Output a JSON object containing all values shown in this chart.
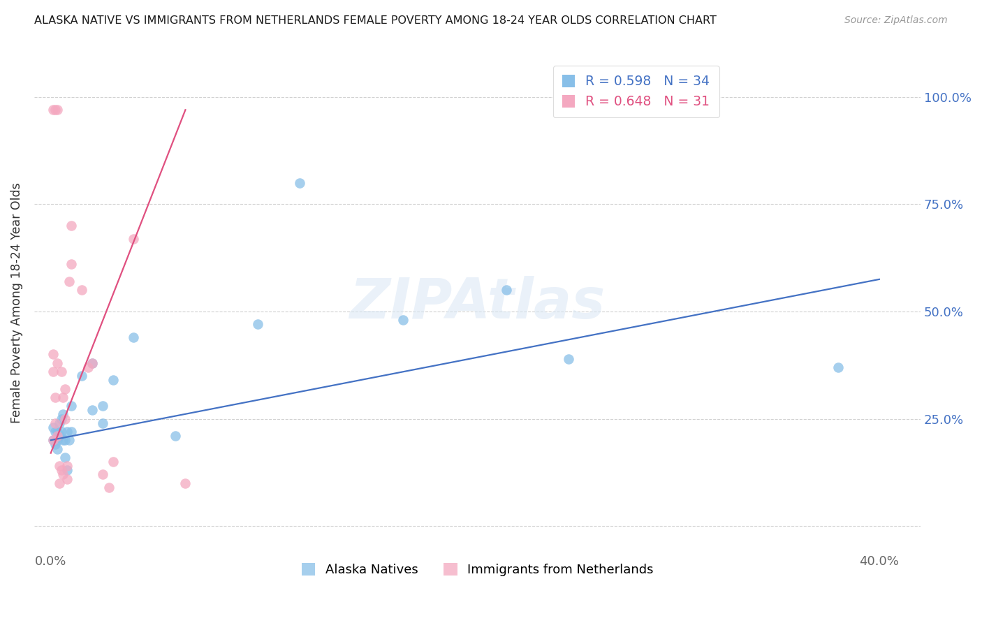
{
  "title": "ALASKA NATIVE VS IMMIGRANTS FROM NETHERLANDS FEMALE POVERTY AMONG 18-24 YEAR OLDS CORRELATION CHART",
  "source": "Source: ZipAtlas.com",
  "ylabel": "Female Poverty Among 18-24 Year Olds",
  "ytick_vals": [
    0.0,
    0.25,
    0.5,
    0.75,
    1.0
  ],
  "ytick_labels": [
    "",
    "25.0%",
    "50.0%",
    "75.0%",
    "100.0%"
  ],
  "xtick_vals": [
    0.0,
    0.1,
    0.2,
    0.3,
    0.4
  ],
  "xtick_labels": [
    "0.0%",
    "",
    "",
    "",
    "40.0%"
  ],
  "xlim": [
    -0.008,
    0.42
  ],
  "ylim": [
    -0.06,
    1.1
  ],
  "legend_blue_r": "R = 0.598",
  "legend_blue_n": "N = 34",
  "legend_pink_r": "R = 0.648",
  "legend_pink_n": "N = 31",
  "blue_color": "#88bfe8",
  "pink_color": "#f4a8c0",
  "blue_line_color": "#4472c4",
  "pink_line_color": "#e05080",
  "watermark": "ZIPAtlas",
  "alaska_x": [
    0.001,
    0.001,
    0.002,
    0.002,
    0.003,
    0.003,
    0.003,
    0.004,
    0.004,
    0.005,
    0.005,
    0.006,
    0.006,
    0.007,
    0.007,
    0.008,
    0.008,
    0.009,
    0.01,
    0.01,
    0.015,
    0.02,
    0.02,
    0.025,
    0.025,
    0.03,
    0.04,
    0.06,
    0.1,
    0.12,
    0.17,
    0.22,
    0.25,
    0.38
  ],
  "alaska_y": [
    0.2,
    0.23,
    0.19,
    0.22,
    0.2,
    0.18,
    0.22,
    0.21,
    0.24,
    0.22,
    0.25,
    0.26,
    0.2,
    0.16,
    0.2,
    0.13,
    0.22,
    0.2,
    0.28,
    0.22,
    0.35,
    0.27,
    0.38,
    0.24,
    0.28,
    0.34,
    0.44,
    0.21,
    0.47,
    0.8,
    0.48,
    0.55,
    0.39,
    0.37
  ],
  "netherlands_x": [
    0.001,
    0.001,
    0.001,
    0.001,
    0.002,
    0.002,
    0.002,
    0.003,
    0.003,
    0.003,
    0.004,
    0.004,
    0.005,
    0.005,
    0.006,
    0.006,
    0.007,
    0.007,
    0.008,
    0.008,
    0.009,
    0.01,
    0.01,
    0.015,
    0.018,
    0.02,
    0.025,
    0.028,
    0.03,
    0.04,
    0.065
  ],
  "netherlands_y": [
    0.2,
    0.36,
    0.4,
    0.97,
    0.24,
    0.3,
    0.97,
    0.21,
    0.38,
    0.97,
    0.14,
    0.1,
    0.36,
    0.13,
    0.3,
    0.12,
    0.32,
    0.25,
    0.14,
    0.11,
    0.57,
    0.61,
    0.7,
    0.55,
    0.37,
    0.38,
    0.12,
    0.09,
    0.15,
    0.67,
    0.1
  ],
  "blue_line_x": [
    0.0,
    0.4
  ],
  "blue_line_y": [
    0.2,
    0.575
  ],
  "pink_line_x": [
    0.0,
    0.065
  ],
  "pink_line_y": [
    0.17,
    0.97
  ]
}
